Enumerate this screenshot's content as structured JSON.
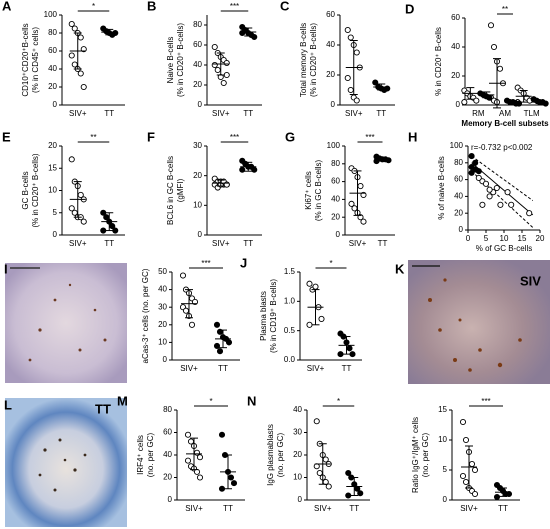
{
  "chart_data": [
    {
      "type": "dot",
      "panel": "A",
      "ylabel": [
        "CD10⁺CD20⁺B-cells",
        "(% in CD45⁺ cells)"
      ],
      "categories": [
        "SIV+",
        "TT"
      ],
      "ylim": [
        0,
        100
      ],
      "yticks": [
        0,
        20,
        40,
        60,
        80,
        100
      ],
      "sig": "*",
      "series": [
        {
          "marker": "open",
          "points": [
            90,
            85,
            80,
            75,
            62,
            55,
            45,
            40,
            35,
            20
          ],
          "center": 60,
          "err": 20
        },
        {
          "marker": "filled",
          "points": [
            85,
            82,
            80,
            78,
            80
          ],
          "center": 81,
          "err": 3
        }
      ]
    },
    {
      "type": "dot",
      "panel": "B",
      "ylabel": [
        "Naive B-cells",
        "(% in CD20⁺ B-cells)"
      ],
      "categories": [
        "SIV+",
        "TT"
      ],
      "ylim": [
        0,
        90
      ],
      "yticks": [
        0,
        20,
        40,
        60,
        80
      ],
      "sig": "***",
      "series": [
        {
          "marker": "open",
          "points": [
            58,
            52,
            48,
            45,
            42,
            40,
            35,
            28,
            22,
            30
          ],
          "center": 41,
          "err": 11
        },
        {
          "marker": "filled",
          "points": [
            78,
            75,
            72,
            70,
            68,
            72
          ],
          "center": 73,
          "err": 4
        }
      ]
    },
    {
      "type": "dot",
      "panel": "C",
      "ylabel": [
        "Total memory B-cells",
        "(% in CD20⁺ B-cells)"
      ],
      "categories": [
        "SIV+",
        "TT"
      ],
      "ylim": [
        0,
        60
      ],
      "yticks": [
        0,
        20,
        40,
        60
      ],
      "series": [
        {
          "marker": "open",
          "points": [
            50,
            45,
            40,
            35,
            25,
            18,
            10,
            5,
            3
          ],
          "center": 25,
          "err": 18
        },
        {
          "marker": "filled",
          "points": [
            15,
            12,
            11,
            10,
            11
          ],
          "center": 12,
          "err": 2
        }
      ]
    },
    {
      "type": "grouped-dot",
      "panel": "D",
      "ylabel": [
        "% in CD20⁺ B-cells"
      ],
      "xlabel": "Memory B-cell subsets",
      "categories": [
        "RM",
        "AM",
        "TLM"
      ],
      "ylim": [
        0,
        60
      ],
      "yticks": [
        0,
        20,
        40,
        60
      ],
      "sig": "**",
      "series": [
        {
          "marker": "open",
          "points": [
            [
              10,
              8,
              6,
              5,
              3,
              2
            ],
            [
              55,
              40,
              30,
              25,
              15,
              5,
              3,
              2
            ],
            [
              12,
              10,
              8,
              5,
              3,
              2
            ]
          ],
          "center": [
            8,
            15,
            6
          ],
          "err": [
            4,
            17,
            4
          ]
        },
        {
          "marker": "filled",
          "points": [
            [
              8,
              7,
              6,
              5
            ],
            [
              3,
              2,
              2,
              1,
              1
            ],
            [
              4,
              3,
              2,
              2,
              1
            ]
          ],
          "center": [
            7,
            2,
            2
          ],
          "err": [
            2,
            1,
            1
          ]
        }
      ]
    },
    {
      "type": "dot",
      "panel": "E",
      "ylabel": [
        "GC B-cells",
        "(% in CD20⁺ B-cells)"
      ],
      "categories": [
        "SIV+",
        "TT"
      ],
      "ylim": [
        0,
        20
      ],
      "yticks": [
        0,
        5,
        10,
        15,
        20
      ],
      "sig": "**",
      "series": [
        {
          "marker": "open",
          "points": [
            17,
            12,
            11,
            9,
            8,
            6,
            5,
            4,
            4,
            3
          ],
          "center": 8,
          "err": 4
        },
        {
          "marker": "filled",
          "points": [
            5,
            4,
            3,
            2,
            1,
            1
          ],
          "center": 3,
          "err": 2
        }
      ]
    },
    {
      "type": "dot",
      "panel": "F",
      "ylabel": [
        "BCL6 in GC B-cells",
        "(gMFI)"
      ],
      "categories": [
        "SIV+",
        "TT"
      ],
      "ylim": [
        0,
        30
      ],
      "yticks": [
        0,
        10,
        20,
        30
      ],
      "sig": "***",
      "series": [
        {
          "marker": "open",
          "points": [
            19,
            18,
            18,
            17,
            17,
            17,
            16,
            17,
            18,
            17
          ],
          "center": 17.5,
          "err": 1
        },
        {
          "marker": "filled",
          "points": [
            25,
            24,
            23,
            23,
            22,
            22
          ],
          "center": 23,
          "err": 1.5
        }
      ]
    },
    {
      "type": "dot",
      "panel": "G",
      "ylabel": [
        "Ki67⁺ cells",
        "(% in GC B-cells)"
      ],
      "categories": [
        "SIV+",
        "TT"
      ],
      "ylim": [
        0,
        100
      ],
      "yticks": [
        0,
        20,
        40,
        60,
        80,
        100
      ],
      "sig": "***",
      "series": [
        {
          "marker": "open",
          "points": [
            75,
            72,
            65,
            55,
            45,
            35,
            30,
            25,
            20,
            15
          ],
          "center": 47,
          "err": 25
        },
        {
          "marker": "filled",
          "points": [
            88,
            86,
            85,
            85,
            84,
            83
          ],
          "center": 85,
          "err": 2
        }
      ]
    },
    {
      "type": "scatter",
      "panel": "H",
      "ylabel": [
        "% of naive B-cells"
      ],
      "xlabel": "% of GC B-cells",
      "annotation": "r=-0.732 p<0.002",
      "xlim": [
        0,
        20
      ],
      "xticks": [
        0,
        5,
        10,
        15,
        20
      ],
      "ylim": [
        0,
        100
      ],
      "yticks": [
        0,
        20,
        40,
        60,
        80,
        100
      ],
      "series": [
        {
          "marker": "filled",
          "x": [
            1,
            1,
            2,
            2,
            3,
            1
          ],
          "y": [
            88,
            75,
            80,
            72,
            70,
            68
          ]
        },
        {
          "marker": "open",
          "x": [
            3,
            4,
            5,
            6,
            7,
            8,
            9,
            11,
            12,
            17,
            4,
            6
          ],
          "y": [
            62,
            58,
            55,
            40,
            45,
            50,
            30,
            45,
            30,
            20,
            30,
            48
          ]
        }
      ],
      "fit": {
        "x": [
          1,
          18
        ],
        "y": [
          80,
          18
        ]
      },
      "band_upper": {
        "x": [
          1,
          18
        ],
        "y": [
          88,
          35
        ]
      },
      "band_lower": {
        "x": [
          1,
          18
        ],
        "y": [
          70,
          3
        ]
      }
    },
    {
      "type": "dot",
      "ylabel": [
        "aCas-3⁺ cells (no. per GC)"
      ],
      "categories": [
        "SIV+",
        "TT"
      ],
      "ylim": [
        0,
        50
      ],
      "yticks": [
        0,
        10,
        20,
        30,
        40,
        50
      ],
      "sig": "***",
      "series": [
        {
          "marker": "open",
          "points": [
            48,
            40,
            38,
            35,
            33,
            30,
            28,
            25,
            20
          ],
          "center": 32,
          "err": 8
        },
        {
          "marker": "filled",
          "points": [
            20,
            16,
            13,
            12,
            10,
            8,
            5
          ],
          "center": 12,
          "err": 5
        }
      ]
    },
    {
      "type": "dot",
      "panel": "J",
      "ylabel": [
        "Plasma blasts",
        "(% in CD19⁺ B-cells)"
      ],
      "categories": [
        "SIV+",
        "TT"
      ],
      "ylim": [
        0,
        1.5
      ],
      "yticks": [
        {
          "value": 0,
          "label": "0.0"
        },
        0.5,
        {
          "value": 1,
          "label": "1.0"
        },
        1.5
      ],
      "sig": "*",
      "series": [
        {
          "marker": "open",
          "points": [
            1.3,
            1.2,
            1.25,
            0.9,
            0.7,
            0.6
          ],
          "center": 0.9,
          "err": 0.3
        },
        {
          "marker": "filled",
          "points": [
            0.45,
            0.4,
            0.3,
            0.2,
            0.1,
            0.1
          ],
          "center": 0.25,
          "err": 0.15
        }
      ]
    },
    {
      "type": "dot",
      "panel": "M",
      "ylabel": [
        "IRF4⁺ cells",
        "(no. per GC)"
      ],
      "categories": [
        "SIV+",
        "TT"
      ],
      "ylim": [
        0,
        80
      ],
      "yticks": [
        0,
        20,
        40,
        60,
        80
      ],
      "sig": "*",
      "series": [
        {
          "marker": "open",
          "points": [
            58,
            52,
            48,
            42,
            38,
            35,
            30,
            28,
            25,
            20
          ],
          "center": 41,
          "err": 14
        },
        {
          "marker": "filled",
          "points": [
            58,
            40,
            25,
            20,
            15,
            10
          ],
          "center": 25,
          "err": 15
        }
      ]
    },
    {
      "type": "dot",
      "panel": "N",
      "ylabel": [
        "IgG plasmablasts",
        "(no. per GC)"
      ],
      "categories": [
        "SIV+",
        "TT"
      ],
      "ylim": [
        0,
        40
      ],
      "yticks": [
        0,
        10,
        20,
        30,
        40
      ],
      "sig": "*",
      "series": [
        {
          "marker": "open",
          "points": [
            35,
            25,
            20,
            18,
            16,
            15,
            12,
            10,
            8,
            6
          ],
          "center": 16,
          "err": 9
        },
        {
          "marker": "filled",
          "points": [
            12,
            10,
            7,
            5,
            3,
            2
          ],
          "center": 6,
          "err": 4
        }
      ]
    },
    {
      "type": "dot",
      "ylabel": [
        "Ratio IgG⁺/IgM⁺ cells",
        "(no. per GC)"
      ],
      "categories": [
        "SIV+",
        "TT"
      ],
      "ylim": [
        0,
        15
      ],
      "yticks": [
        0,
        5,
        10,
        15
      ],
      "sig": "***",
      "series": [
        {
          "marker": "open",
          "points": [
            13,
            10,
            8,
            6,
            5,
            4,
            3,
            2,
            1.5,
            1
          ],
          "center": 5.5,
          "err": 3.5
        },
        {
          "marker": "filled",
          "points": [
            2.5,
            2,
            1.5,
            1,
            1,
            0.5
          ],
          "center": 1.3,
          "err": 0.7
        }
      ]
    }
  ],
  "images": [
    {
      "panel": "I"
    },
    {
      "panel": "K",
      "label": "SIV"
    },
    {
      "panel": "L",
      "label": "TT"
    }
  ]
}
